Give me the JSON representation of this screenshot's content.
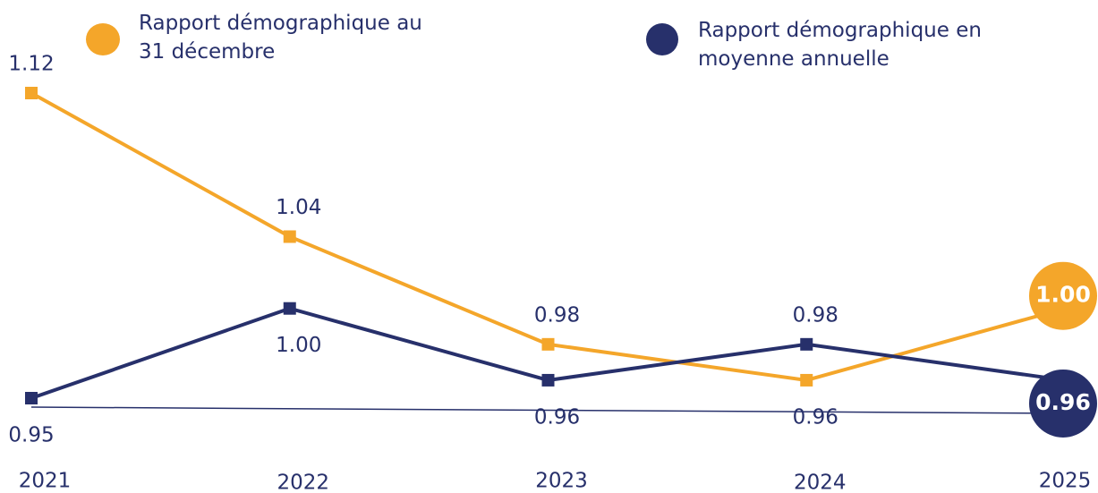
{
  "chart_data": {
    "type": "line",
    "categories": [
      "2021",
      "2022",
      "2023",
      "2024",
      "2025"
    ],
    "series": [
      {
        "name": "Rapport démographique au 31 décembre",
        "color": "#f4a62a",
        "values": [
          1.12,
          1.04,
          0.98,
          0.96,
          1.0
        ],
        "value_labels": [
          "1.12",
          "1.04",
          "0.98",
          "0.96",
          "1.00"
        ]
      },
      {
        "name": "Rapport démographique en moyenne annuelle",
        "color": "#27306b",
        "values": [
          0.95,
          1.0,
          0.96,
          0.98,
          0.96
        ],
        "value_labels": [
          "0.95",
          "1.00",
          "0.96",
          "0.98",
          "0.96"
        ]
      }
    ]
  }
}
